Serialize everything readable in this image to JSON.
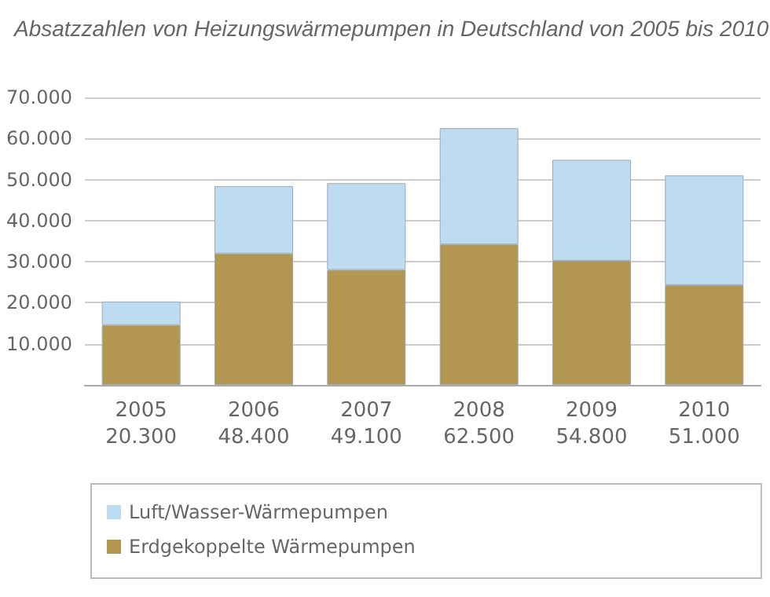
{
  "chart_data": {
    "type": "bar",
    "title": "Absatzzahlen von Heizungswärmepumpen in Deutschland von 2005 bis 2010",
    "categories": [
      "2005",
      "2006",
      "2007",
      "2008",
      "2009",
      "2010"
    ],
    "totals": [
      "20.300",
      "48.400",
      "49.100",
      "62.500",
      "54.800",
      "51.000"
    ],
    "stacked": true,
    "series": [
      {
        "name": "Erdgekoppelte Wärmepumpen",
        "color": "#b39650",
        "values": [
          14600,
          32000,
          28000,
          34200,
          30200,
          24300
        ]
      },
      {
        "name": "Luft/Wasser-Wärmepumpen",
        "color": "#bddcf2",
        "values": [
          5700,
          16400,
          21100,
          28300,
          24600,
          26700
        ]
      }
    ],
    "ylim": [
      0,
      70000
    ],
    "yticks": [
      {
        "value": 0,
        "label": null
      },
      {
        "value": 10000,
        "label": "10.000"
      },
      {
        "value": 20000,
        "label": "20.000"
      },
      {
        "value": 30000,
        "label": "30.000"
      },
      {
        "value": 40000,
        "label": "40.000"
      },
      {
        "value": 50000,
        "label": "50.000"
      },
      {
        "value": 60000,
        "label": "60.000"
      },
      {
        "value": 70000,
        "label": "70.000"
      }
    ],
    "grid": "y",
    "legend": "bottom"
  }
}
